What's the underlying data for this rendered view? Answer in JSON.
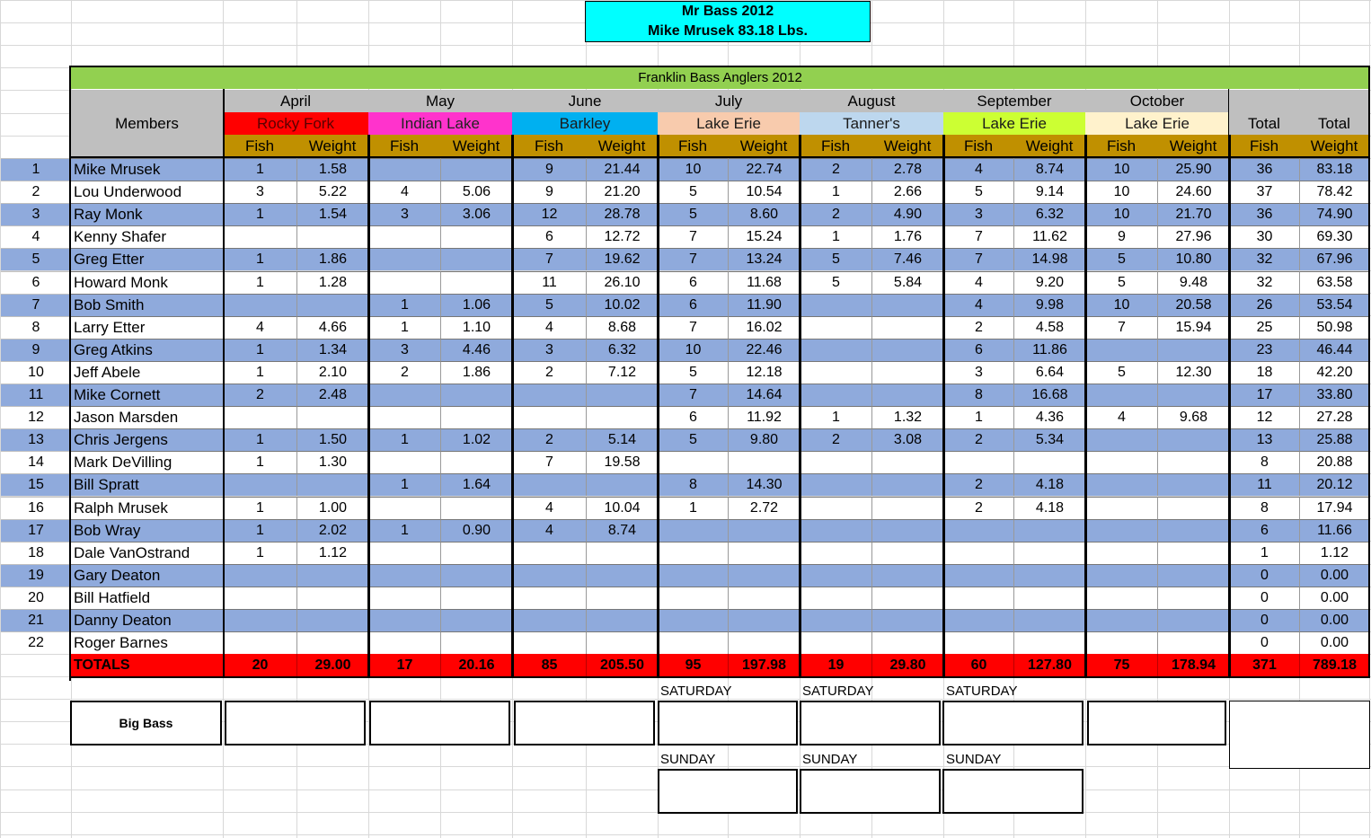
{
  "header": {
    "title_line1": "Mr Bass 2012",
    "title_line2": "Mike Mrusek  83.18 Lbs.",
    "banner": "Franklin Bass Anglers 2012",
    "members_label": "Members",
    "total_label": "Total",
    "fish_label": "Fish",
    "weight_label": "Weight"
  },
  "months": [
    {
      "name": "April",
      "lake": "Rocky Fork",
      "lake_color": "#ff0000",
      "lake_text_color": "#5a0000"
    },
    {
      "name": "May",
      "lake": "Indian Lake",
      "lake_color": "#ff33cc",
      "lake_text_color": "#222222"
    },
    {
      "name": "June",
      "lake": "Barkley",
      "lake_color": "#00b0f0",
      "lake_text_color": "#1a1a1a"
    },
    {
      "name": "July",
      "lake": "Lake Erie",
      "lake_color": "#f8cbad",
      "lake_text_color": "#1a1a1a"
    },
    {
      "name": "August",
      "lake": "Tanner's",
      "lake_color": "#bdd7ee",
      "lake_text_color": "#1a1a1a"
    },
    {
      "name": "September",
      "lake": "Lake Erie",
      "lake_color": "#ccff33",
      "lake_text_color": "#1a1a1a"
    },
    {
      "name": "October",
      "lake": "Lake Erie",
      "lake_color": "#fff2cc",
      "lake_text_color": "#1a1a1a"
    }
  ],
  "members": [
    {
      "n": "1",
      "name": "Mike Mrusek",
      "v": [
        "1",
        "1.58",
        "",
        "",
        "9",
        "21.44",
        "10",
        "22.74",
        "2",
        "2.78",
        "4",
        "8.74",
        "10",
        "25.90",
        "36",
        "83.18"
      ]
    },
    {
      "n": "2",
      "name": "Lou Underwood",
      "v": [
        "3",
        "5.22",
        "4",
        "5.06",
        "9",
        "21.20",
        "5",
        "10.54",
        "1",
        "2.66",
        "5",
        "9.14",
        "10",
        "24.60",
        "37",
        "78.42"
      ]
    },
    {
      "n": "3",
      "name": "Ray Monk",
      "v": [
        "1",
        "1.54",
        "3",
        "3.06",
        "12",
        "28.78",
        "5",
        "8.60",
        "2",
        "4.90",
        "3",
        "6.32",
        "10",
        "21.70",
        "36",
        "74.90"
      ]
    },
    {
      "n": "4",
      "name": "Kenny Shafer",
      "v": [
        "",
        "",
        "",
        "",
        "6",
        "12.72",
        "7",
        "15.24",
        "1",
        "1.76",
        "7",
        "11.62",
        "9",
        "27.96",
        "30",
        "69.30"
      ]
    },
    {
      "n": "5",
      "name": "Greg Etter",
      "v": [
        "1",
        "1.86",
        "",
        "",
        "7",
        "19.62",
        "7",
        "13.24",
        "5",
        "7.46",
        "7",
        "14.98",
        "5",
        "10.80",
        "32",
        "67.96"
      ]
    },
    {
      "n": "6",
      "name": "Howard Monk",
      "v": [
        "1",
        "1.28",
        "",
        "",
        "11",
        "26.10",
        "6",
        "11.68",
        "5",
        "5.84",
        "4",
        "9.20",
        "5",
        "9.48",
        "32",
        "63.58"
      ]
    },
    {
      "n": "7",
      "name": "Bob Smith",
      "v": [
        "",
        "",
        "1",
        "1.06",
        "5",
        "10.02",
        "6",
        "11.90",
        "",
        "",
        "4",
        "9.98",
        "10",
        "20.58",
        "26",
        "53.54"
      ]
    },
    {
      "n": "8",
      "name": "Larry Etter",
      "v": [
        "4",
        "4.66",
        "1",
        "1.10",
        "4",
        "8.68",
        "7",
        "16.02",
        "",
        "",
        "2",
        "4.58",
        "7",
        "15.94",
        "25",
        "50.98"
      ]
    },
    {
      "n": "9",
      "name": "Greg Atkins",
      "v": [
        "1",
        "1.34",
        "3",
        "4.46",
        "3",
        "6.32",
        "10",
        "22.46",
        "",
        "",
        "6",
        "11.86",
        "",
        "",
        "23",
        "46.44"
      ]
    },
    {
      "n": "10",
      "name": "Jeff Abele",
      "v": [
        "1",
        "2.10",
        "2",
        "1.86",
        "2",
        "7.12",
        "5",
        "12.18",
        "",
        "",
        "3",
        "6.64",
        "5",
        "12.30",
        "18",
        "42.20"
      ]
    },
    {
      "n": "11",
      "name": "Mike Cornett",
      "v": [
        "2",
        "2.48",
        "",
        "",
        "",
        "",
        "7",
        "14.64",
        "",
        "",
        "8",
        "16.68",
        "",
        "",
        "17",
        "33.80"
      ]
    },
    {
      "n": "12",
      "name": "Jason Marsden",
      "v": [
        "",
        "",
        "",
        "",
        "",
        "",
        "6",
        "11.92",
        "1",
        "1.32",
        "1",
        "4.36",
        "4",
        "9.68",
        "12",
        "27.28"
      ]
    },
    {
      "n": "13",
      "name": "Chris Jergens",
      "v": [
        "1",
        "1.50",
        "1",
        "1.02",
        "2",
        "5.14",
        "5",
        "9.80",
        "2",
        "3.08",
        "2",
        "5.34",
        "",
        "",
        "13",
        "25.88"
      ]
    },
    {
      "n": "14",
      "name": "Mark DeVilling",
      "v": [
        "1",
        "1.30",
        "",
        "",
        "7",
        "19.58",
        "",
        "",
        "",
        "",
        "",
        "",
        "",
        "",
        "8",
        "20.88"
      ]
    },
    {
      "n": "15",
      "name": "Bill Spratt",
      "v": [
        "",
        "",
        "1",
        "1.64",
        "",
        "",
        "8",
        "14.30",
        "",
        "",
        "2",
        "4.18",
        "",
        "",
        "11",
        "20.12"
      ]
    },
    {
      "n": "16",
      "name": "Ralph Mrusek",
      "v": [
        "1",
        "1.00",
        "",
        "",
        "4",
        "10.04",
        "1",
        "2.72",
        "",
        "",
        "2",
        "4.18",
        "",
        "",
        "8",
        "17.94"
      ]
    },
    {
      "n": "17",
      "name": "Bob Wray",
      "v": [
        "1",
        "2.02",
        "1",
        "0.90",
        "4",
        "8.74",
        "",
        "",
        "",
        "",
        "",
        "",
        "",
        "",
        "6",
        "11.66"
      ]
    },
    {
      "n": "18",
      "name": "Dale VanOstrand",
      "v": [
        "1",
        "1.12",
        "",
        "",
        "",
        "",
        "",
        "",
        "",
        "",
        "",
        "",
        "",
        "",
        "1",
        "1.12"
      ]
    },
    {
      "n": "19",
      "name": "Gary Deaton",
      "v": [
        "",
        "",
        "",
        "",
        "",
        "",
        "",
        "",
        "",
        "",
        "",
        "",
        "",
        "",
        "0",
        "0.00"
      ]
    },
    {
      "n": "20",
      "name": "Bill Hatfield",
      "v": [
        "",
        "",
        "",
        "",
        "",
        "",
        "",
        "",
        "",
        "",
        "",
        "",
        "",
        "",
        "0",
        "0.00"
      ]
    },
    {
      "n": "21",
      "name": "Danny Deaton",
      "v": [
        "",
        "",
        "",
        "",
        "",
        "",
        "",
        "",
        "",
        "",
        "",
        "",
        "",
        "",
        "0",
        "0.00"
      ]
    },
    {
      "n": "22",
      "name": "Roger Barnes",
      "v": [
        "",
        "",
        "",
        "",
        "",
        "",
        "",
        "",
        "",
        "",
        "",
        "",
        "",
        "",
        "0",
        "0.00"
      ]
    }
  ],
  "totals": {
    "label": "TOTALS",
    "v": [
      "20",
      "29.00",
      "17",
      "20.16",
      "85",
      "205.50",
      "95",
      "197.98",
      "19",
      "29.80",
      "60",
      "127.80",
      "75",
      "178.94",
      "371",
      "789.18"
    ]
  },
  "big_bass": {
    "label": "Big Bass",
    "saturday_label": "SATURDAY",
    "sunday_label": "SUNDAY"
  },
  "colors": {
    "band": "#8faadc",
    "header_gray": "#bfbfbf",
    "fish_weight_header": "#c09000",
    "banner_green": "#92d050",
    "title_cyan": "#00ffff",
    "totals_red": "#ff0000"
  }
}
